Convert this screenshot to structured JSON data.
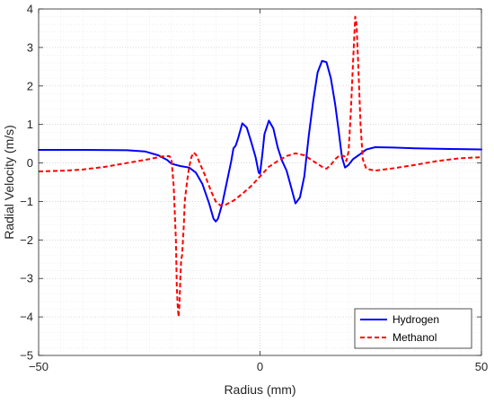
{
  "chart_data": {
    "type": "line",
    "xlabel": "Radius (mm)",
    "ylabel": "Radial Velocity (m/s)",
    "xlim": [
      -50,
      50
    ],
    "ylim": [
      -5,
      4
    ],
    "xticks": [
      -50,
      0,
      50
    ],
    "xtick_labels": [
      "−50",
      "0",
      "50"
    ],
    "yticks": [
      -5,
      -4,
      -3,
      -2,
      -1,
      0,
      1,
      2,
      3,
      4
    ],
    "ytick_labels": [
      "−5",
      "−4",
      "−3",
      "−2",
      "−1",
      "0",
      "1",
      "2",
      "3",
      "4"
    ],
    "grid": "major and minor, dotted",
    "legend_position": "bottom-right",
    "series": [
      {
        "name": "Hydrogen",
        "color": "#0000ff",
        "style": "solid",
        "points": [
          [
            -50,
            0.34
          ],
          [
            -40,
            0.34
          ],
          [
            -30,
            0.33
          ],
          [
            -26,
            0.3
          ],
          [
            -23,
            0.2
          ],
          [
            -21,
            0.08
          ],
          [
            -20,
            -0.02
          ],
          [
            -18,
            -0.08
          ],
          [
            -16,
            -0.12
          ],
          [
            -14.5,
            -0.25
          ],
          [
            -13,
            -0.55
          ],
          [
            -11.5,
            -1.05
          ],
          [
            -10.5,
            -1.45
          ],
          [
            -10,
            -1.52
          ],
          [
            -9.5,
            -1.45
          ],
          [
            -8.5,
            -1.05
          ],
          [
            -7.5,
            -0.5
          ],
          [
            -6.5,
            0.05
          ],
          [
            -6,
            0.38
          ],
          [
            -5.5,
            0.45
          ],
          [
            -5,
            0.62
          ],
          [
            -4,
            1.03
          ],
          [
            -3,
            0.92
          ],
          [
            -2,
            0.55
          ],
          [
            -1,
            0.15
          ],
          [
            -0.3,
            -0.25
          ],
          [
            0,
            -0.28
          ],
          [
            0.5,
            0.2
          ],
          [
            1,
            0.75
          ],
          [
            2,
            1.1
          ],
          [
            3,
            0.9
          ],
          [
            4,
            0.4
          ],
          [
            5,
            0.05
          ],
          [
            6,
            -0.2
          ],
          [
            7,
            -0.62
          ],
          [
            8,
            -1.05
          ],
          [
            9,
            -0.9
          ],
          [
            10,
            -0.35
          ],
          [
            11,
            0.7
          ],
          [
            12,
            1.6
          ],
          [
            13,
            2.35
          ],
          [
            14,
            2.65
          ],
          [
            15,
            2.62
          ],
          [
            16,
            2.2
          ],
          [
            17,
            1.5
          ],
          [
            17.8,
            0.8
          ],
          [
            18.5,
            0.15
          ],
          [
            19.2,
            -0.12
          ],
          [
            20,
            -0.05
          ],
          [
            21,
            0.1
          ],
          [
            22.5,
            0.22
          ],
          [
            24,
            0.35
          ],
          [
            26,
            0.41
          ],
          [
            30,
            0.4
          ],
          [
            35,
            0.38
          ],
          [
            40,
            0.37
          ],
          [
            45,
            0.36
          ],
          [
            50,
            0.35
          ]
        ]
      },
      {
        "name": "Methanol",
        "color": "#ff0000",
        "style": "dashed",
        "points": [
          [
            -50,
            -0.22
          ],
          [
            -44,
            -0.2
          ],
          [
            -40,
            -0.17
          ],
          [
            -35,
            -0.1
          ],
          [
            -30,
            0.0
          ],
          [
            -25,
            0.1
          ],
          [
            -22,
            0.17
          ],
          [
            -20.5,
            0.18
          ],
          [
            -20,
            0.1
          ],
          [
            -19.5,
            -0.6
          ],
          [
            -19,
            -2.0
          ],
          [
            -18.8,
            -3.2
          ],
          [
            -18.6,
            -3.7
          ],
          [
            -18.4,
            -4.0
          ],
          [
            -18.2,
            -3.7
          ],
          [
            -18,
            -3.0
          ],
          [
            -17.8,
            -2.5
          ],
          [
            -17.6,
            -2.4
          ],
          [
            -17.4,
            -2.0
          ],
          [
            -17.2,
            -1.6
          ],
          [
            -17,
            -1.0
          ],
          [
            -16.5,
            -0.5
          ],
          [
            -16,
            -0.1
          ],
          [
            -15.5,
            0.15
          ],
          [
            -15,
            0.27
          ],
          [
            -14.5,
            0.22
          ],
          [
            -14,
            0.1
          ],
          [
            -12.5,
            -0.3
          ],
          [
            -11,
            -0.75
          ],
          [
            -10,
            -1.0
          ],
          [
            -9,
            -1.1
          ],
          [
            -8,
            -1.1
          ],
          [
            -6,
            -0.98
          ],
          [
            -4,
            -0.8
          ],
          [
            -2,
            -0.6
          ],
          [
            0,
            -0.35
          ],
          [
            2,
            -0.1
          ],
          [
            4,
            0.05
          ],
          [
            6,
            0.18
          ],
          [
            8,
            0.25
          ],
          [
            10,
            0.2
          ],
          [
            12,
            0.05
          ],
          [
            14,
            -0.1
          ],
          [
            15,
            -0.15
          ],
          [
            16,
            -0.05
          ],
          [
            17,
            0.1
          ],
          [
            18,
            0.2
          ],
          [
            19,
            0.18
          ],
          [
            19.5,
            0.05
          ],
          [
            20,
            0.3
          ],
          [
            20.5,
            1.3
          ],
          [
            21,
            2.6
          ],
          [
            21.5,
            3.8
          ],
          [
            21.8,
            3.6
          ],
          [
            22.2,
            2.5
          ],
          [
            22.7,
            1.0
          ],
          [
            23.2,
            0.1
          ],
          [
            24,
            -0.15
          ],
          [
            26,
            -0.2
          ],
          [
            30,
            -0.14
          ],
          [
            35,
            -0.05
          ],
          [
            40,
            0.05
          ],
          [
            45,
            0.12
          ],
          [
            50,
            0.15
          ]
        ]
      }
    ]
  }
}
